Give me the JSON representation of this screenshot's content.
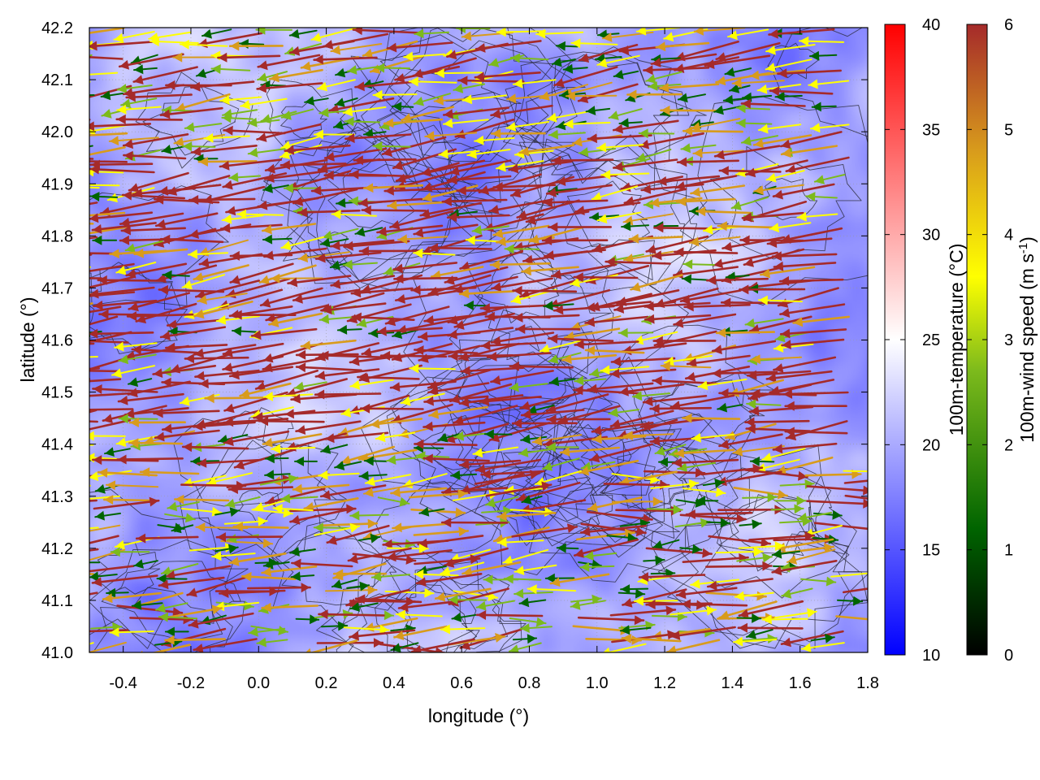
{
  "chart_data": {
    "type": "heatmap",
    "subtype": "vector field over colour map with terrain contours",
    "xlabel": "longitude (°)",
    "ylabel": "latitude (°)",
    "xlim": [
      -0.5,
      1.8
    ],
    "ylim": [
      41.0,
      42.2
    ],
    "x_ticks": [
      "-0.4",
      "-0.2",
      "0.0",
      "0.2",
      "0.4",
      "0.6",
      "0.8",
      "1.0",
      "1.2",
      "1.4",
      "1.6",
      "1.8"
    ],
    "x_tick_values": [
      -0.4,
      -0.2,
      0.0,
      0.2,
      0.4,
      0.6,
      0.8,
      1.0,
      1.2,
      1.4,
      1.6,
      1.8
    ],
    "y_ticks": [
      "41.0",
      "41.1",
      "41.2",
      "41.3",
      "41.4",
      "41.5",
      "41.6",
      "41.7",
      "41.8",
      "41.9",
      "42.0",
      "42.1",
      "42.2"
    ],
    "y_tick_values": [
      41.0,
      41.1,
      41.2,
      41.3,
      41.4,
      41.5,
      41.6,
      41.7,
      41.8,
      41.9,
      42.0,
      42.1,
      42.2
    ],
    "grid": true,
    "temperature_colorbar": {
      "label": "100m-temperature (°C)",
      "range": [
        10,
        40
      ],
      "ticks": [
        "10",
        "15",
        "20",
        "25",
        "30",
        "35",
        "40"
      ],
      "tick_values": [
        10,
        15,
        20,
        25,
        30,
        35,
        40
      ],
      "colors": {
        "low": "#0000ff",
        "mid": "#ffffff",
        "high": "#ff0000"
      }
    },
    "wind_colorbar": {
      "label_main": "100m-wind speed (m s",
      "label_sup": "-1",
      "label_end": ")",
      "range": [
        0,
        6
      ],
      "ticks": [
        "0",
        "1",
        "2",
        "3",
        "4",
        "5",
        "6"
      ],
      "tick_values": [
        0,
        1,
        2,
        3,
        4,
        5,
        6
      ],
      "colors": [
        "#000000",
        "#006400",
        "#7cba1c",
        "#ffff00",
        "#d89b1c",
        "#a52a2a"
      ]
    },
    "temperature_field_typical": [
      14,
      24
    ],
    "dominant_wind_direction": "westward (arrows pointing west)",
    "wind_speed_typical": [
      1,
      6
    ]
  }
}
